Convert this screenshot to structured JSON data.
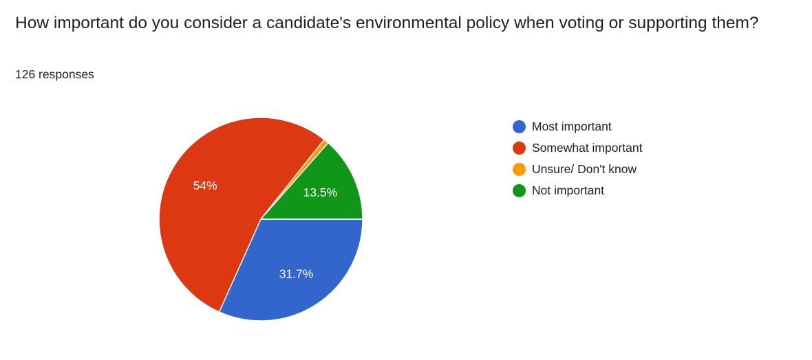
{
  "question": {
    "title": "How important do you consider a candidate's environmental policy when voting or supporting them?",
    "responses": "126 responses"
  },
  "chart_data": {
    "type": "pie",
    "slices": [
      {
        "name": "Most important",
        "value": 31.7,
        "color": "#3366cc",
        "label": "31.7%"
      },
      {
        "name": "Somewhat important",
        "value": 54.0,
        "color": "#dc3912",
        "label": "54%"
      },
      {
        "name": "Unsure/ Don't know",
        "value": 0.8,
        "color": "#ff9900",
        "label": ""
      },
      {
        "name": "Not important",
        "value": 13.5,
        "color": "#109618",
        "label": "13.5%"
      }
    ],
    "legend_position": "right"
  }
}
